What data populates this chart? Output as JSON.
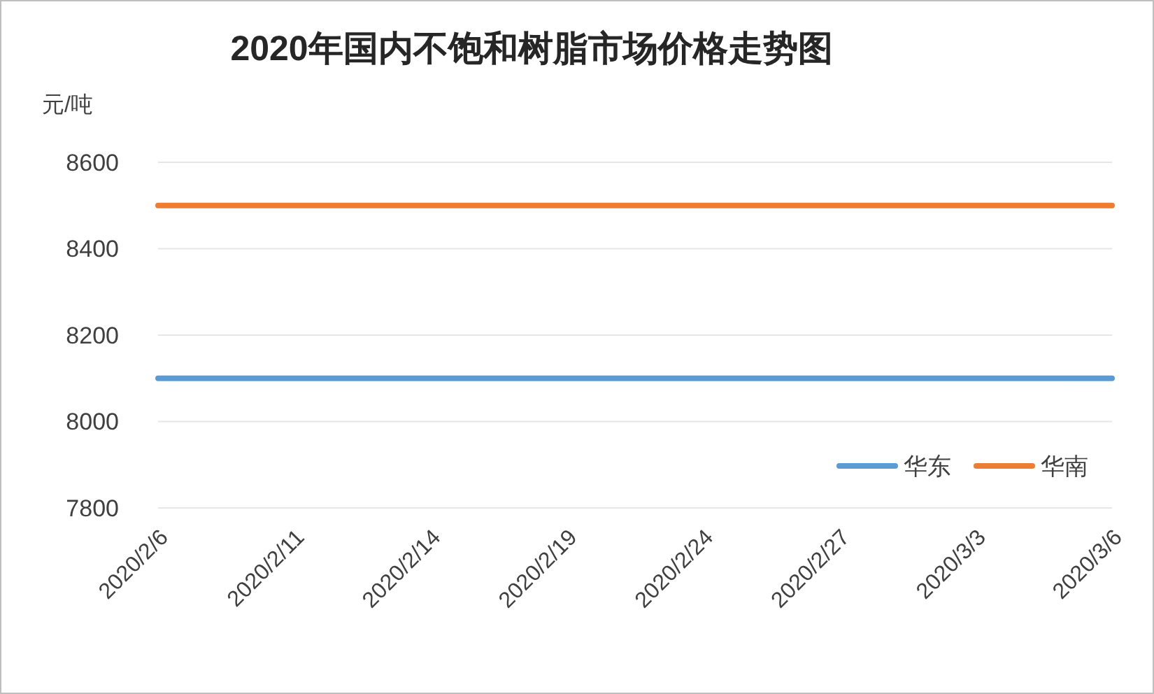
{
  "chart_data": {
    "type": "line",
    "title": "2020年国内不饱和树脂市场价格走势图",
    "ylabel": "元/吨",
    "categories": [
      "2020/2/6",
      "2020/2/11",
      "2020/2/14",
      "2020/2/19",
      "2020/2/24",
      "2020/2/27",
      "2020/3/3",
      "2020/3/6"
    ],
    "series": [
      {
        "name": "华东",
        "color": "#5b9bd5",
        "values": [
          8100,
          8100,
          8100,
          8100,
          8100,
          8100,
          8100,
          8100
        ]
      },
      {
        "name": "华南",
        "color": "#ed7d31",
        "values": [
          8500,
          8500,
          8500,
          8500,
          8500,
          8500,
          8500,
          8500
        ]
      }
    ],
    "ylim": [
      7800,
      8600
    ],
    "yticks": [
      7800,
      8000,
      8200,
      8400,
      8600
    ],
    "grid": "y",
    "legend": "bottom right",
    "marker": "none",
    "line_style": "solid"
  }
}
